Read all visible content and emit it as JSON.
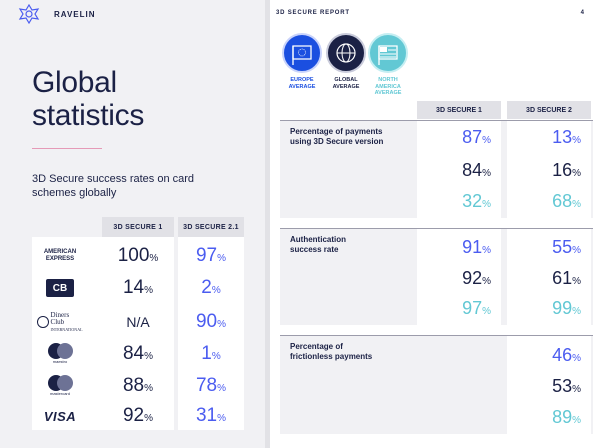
{
  "brand": {
    "name": "RAVELIN",
    "logo": "ravelin-logo-icon"
  },
  "left": {
    "title_line1": "Global",
    "title_line2": "statistics",
    "subtitle": "3D Secure success rates on card schemes globally",
    "col1_header": "3D SECURE 1",
    "col2_header": "3D SECURE 2.1",
    "rows": [
      {
        "scheme": "American Express",
        "logo_text": "AMERICAN EXPRESS",
        "v1": "100",
        "v2": "97",
        "icon": "amex-logo-icon"
      },
      {
        "scheme": "CB",
        "logo_text": "CB",
        "v1": "14",
        "v2": "2",
        "icon": "cb-logo-icon"
      },
      {
        "scheme": "Diners Club International",
        "logo_text": "Diners Club",
        "logo_sub": "INTERNATIONAL",
        "v1": "N/A",
        "v2": "90",
        "icon": "diners-logo-icon"
      },
      {
        "scheme": "Maestro",
        "logo_text": "maestro",
        "v1": "84",
        "v2": "1",
        "icon": "maestro-logo-icon"
      },
      {
        "scheme": "Mastercard",
        "logo_text": "mastercard",
        "v1": "88",
        "v2": "78",
        "icon": "mastercard-logo-icon"
      },
      {
        "scheme": "Visa",
        "logo_text": "VISA",
        "v1": "92",
        "v2": "31",
        "icon": "visa-logo-icon"
      }
    ],
    "percent_sign": "%"
  },
  "right": {
    "report_title": "3D SECURE REPORT",
    "page_number": "4",
    "regions": [
      {
        "line1": "EUROPE",
        "line2": "AVERAGE",
        "line3": "",
        "color": "#1b4fe0",
        "icon": "eu-flag-icon"
      },
      {
        "line1": "GLOBAL",
        "line2": "AVERAGE",
        "line3": "",
        "color": "#1b2145",
        "icon": "globe-icon"
      },
      {
        "line1": "NORTH",
        "line2": "AMERICA",
        "line3": "AVERAGE",
        "color": "#62c8d4",
        "icon": "north-america-flag-icon"
      }
    ],
    "col1_header": "3D SECURE 1",
    "col2_header": "3D SECURE 2",
    "metrics": [
      {
        "label_line1": "Percentage of payments",
        "label_line2": "using 3D Secure version",
        "europe": [
          "87",
          "13"
        ],
        "global": [
          "84",
          "16"
        ],
        "north_america": [
          "32",
          "68"
        ]
      },
      {
        "label_line1": "Authentication",
        "label_line2": "success rate",
        "europe": [
          "91",
          "55"
        ],
        "global": [
          "92",
          "61"
        ],
        "north_america": [
          "97",
          "99"
        ]
      },
      {
        "label_line1": "Percentage of",
        "label_line2": "frictionless payments",
        "europe": [
          "",
          "46"
        ],
        "global": [
          "",
          "53"
        ],
        "north_america": [
          "",
          "89"
        ]
      }
    ],
    "colors": {
      "europe": "#4b5cf0",
      "global": "#1b2145",
      "north_america": "#62c8d4"
    }
  }
}
